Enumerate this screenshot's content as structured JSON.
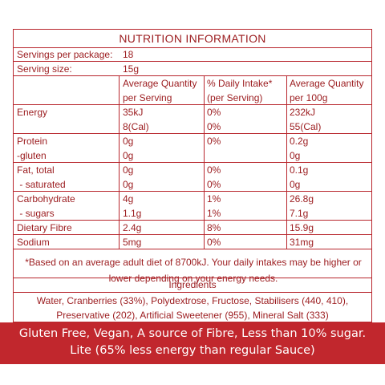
{
  "title": "NUTRITION INFORMATION",
  "servings_per_package": {
    "label": "Servings per package:",
    "value": "18"
  },
  "serving_size": {
    "label": "Serving size:",
    "value": "15g"
  },
  "headers": {
    "col1_line1": "Average Quantity",
    "col1_line2": "per Serving",
    "col2_line1": "% Daily Intake*",
    "col2_line2": "(per Serving)",
    "col3_line1": "Average Quantity",
    "col3_line2": "per 100g"
  },
  "rows": [
    {
      "name": "Energy",
      "serving": "35kJ",
      "di": "0%",
      "per100": "232kJ"
    },
    {
      "name": "",
      "serving": "8(Cal)",
      "di": "0%",
      "per100": "55(Cal)"
    },
    {
      "name": "Protein",
      "serving": "0g",
      "di": "0%",
      "per100": "0.2g"
    },
    {
      "name": "-gluten",
      "serving": "0g",
      "di": "",
      "per100": "0g"
    },
    {
      "name": "Fat, total",
      "serving": "0g",
      "di": "0%",
      "per100": "0.1g"
    },
    {
      "name": " - saturated",
      "serving": "0g",
      "di": "0%",
      "per100": "0g"
    },
    {
      "name": "Carbohydrate",
      "serving": "4g",
      "di": "1%",
      "per100": "26.8g"
    },
    {
      "name": " - sugars",
      "serving": "1.1g",
      "di": "1%",
      "per100": "7.1g"
    },
    {
      "name": "Dietary Fibre",
      "serving": "2.4g",
      "di": "8%",
      "per100": "15.9g"
    },
    {
      "name": "Sodium",
      "serving": "5mg",
      "di": "0%",
      "per100": "31mg"
    }
  ],
  "footnote_line1": "*Based on an average adult diet of 8700kJ. Your daily intakes may be higher or",
  "footnote_line2": "lower depending on your energy needs.",
  "ingredients_title": "Ingredients",
  "ingredients_line1": "Water, Cranberries (33%), Polydextrose, Fructose, Stabilisers (440, 410),",
  "ingredients_line2": "Preservative (202), Artificial Sweetener (955), Mineral Salt (333)",
  "banner_line1": "Gluten Free, Vegan, A source of Fibre, Less than 10% sugar.",
  "banner_line2": "Lite (65% less energy than regular Sauce)",
  "colors": {
    "text": "#9b1b1e",
    "border": "#b8262d",
    "banner": "#c1272d"
  }
}
